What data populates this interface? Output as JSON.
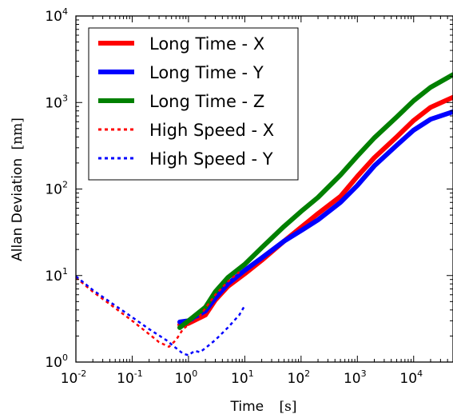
{
  "chart_data": {
    "type": "line",
    "xlabel": "Time",
    "xunit": "[s]",
    "ylabel": "Allan Deviation",
    "yunit": "[nm]",
    "xscale": "log",
    "yscale": "log",
    "xlim": [
      0.01,
      50000
    ],
    "ylim": [
      1,
      10000
    ],
    "xticks": [
      {
        "base": "10",
        "exp": "-2"
      },
      {
        "base": "10",
        "exp": "-1"
      },
      {
        "base": "10",
        "exp": "0"
      },
      {
        "base": "10",
        "exp": "1"
      },
      {
        "base": "10",
        "exp": "2"
      },
      {
        "base": "10",
        "exp": "3"
      },
      {
        "base": "10",
        "exp": "4"
      }
    ],
    "yticks": [
      {
        "base": "10",
        "exp": "0"
      },
      {
        "base": "10",
        "exp": "1"
      },
      {
        "base": "10",
        "exp": "2"
      },
      {
        "base": "10",
        "exp": "3"
      },
      {
        "base": "10",
        "exp": "4"
      }
    ],
    "legend_position": "top-left",
    "grid": false,
    "series": [
      {
        "name": "Long Time - X",
        "color": "#ff0000",
        "style": "solid",
        "x": [
          0.7,
          1,
          2,
          3,
          5,
          10,
          20,
          50,
          100,
          200,
          500,
          1000,
          2000,
          5000,
          10000,
          20000,
          50000
        ],
        "y": [
          2.7,
          2.8,
          3.5,
          5.2,
          7.5,
          10.5,
          15,
          25,
          36,
          52,
          82,
          140,
          230,
          400,
          620,
          880,
          1150
        ]
      },
      {
        "name": "Long Time - Y",
        "color": "#0000ff",
        "style": "solid",
        "x": [
          0.7,
          1,
          2,
          3,
          5,
          10,
          20,
          50,
          100,
          200,
          500,
          1000,
          2000,
          5000,
          10000,
          20000,
          50000
        ],
        "y": [
          2.9,
          3.0,
          3.9,
          5.5,
          8.0,
          11.5,
          16,
          25,
          33,
          44,
          70,
          110,
          185,
          320,
          480,
          640,
          780
        ]
      },
      {
        "name": "Long Time - Z",
        "color": "#008000",
        "style": "solid",
        "x": [
          0.7,
          1,
          2,
          3,
          5,
          10,
          20,
          50,
          100,
          200,
          500,
          1000,
          2000,
          5000,
          10000,
          20000,
          50000
        ],
        "y": [
          2.5,
          3.0,
          4.3,
          6.5,
          9.5,
          13.5,
          21,
          37,
          55,
          80,
          145,
          240,
          390,
          680,
          1050,
          1500,
          2100
        ]
      },
      {
        "name": "High Speed - X",
        "color": "#ff0000",
        "style": "dotted",
        "x": [
          0.01,
          0.02,
          0.05,
          0.1,
          0.2,
          0.3,
          0.45,
          0.6,
          0.8,
          1,
          1.5,
          2,
          3,
          5,
          8
        ],
        "y": [
          9.5,
          6.5,
          4.2,
          3.0,
          2.1,
          1.7,
          1.5,
          1.8,
          2.4,
          2.7,
          3.2,
          4.2,
          6,
          8.5,
          11
        ]
      },
      {
        "name": "High Speed - Y",
        "color": "#0000ff",
        "style": "dotted",
        "x": [
          0.01,
          0.02,
          0.05,
          0.1,
          0.2,
          0.4,
          0.6,
          0.8,
          1,
          1.3,
          1.6,
          2,
          3,
          5,
          8,
          10
        ],
        "y": [
          9.8,
          6.8,
          4.5,
          3.3,
          2.4,
          1.8,
          1.45,
          1.25,
          1.2,
          1.35,
          1.3,
          1.45,
          1.8,
          2.5,
          3.5,
          4.5
        ]
      }
    ]
  }
}
